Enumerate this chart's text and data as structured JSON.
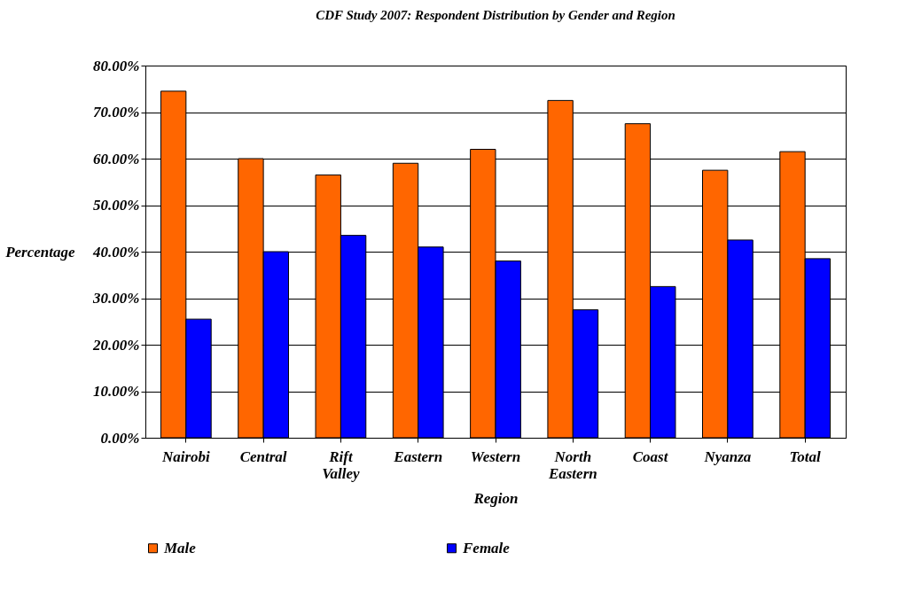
{
  "chart_data": {
    "type": "bar",
    "title": "CDF Study 2007: Respondent Distribution by Gender and Region",
    "xlabel": "Region",
    "ylabel": "Percentage",
    "categories": [
      "Nairobi",
      "Central",
      "Rift Valley",
      "Eastern",
      "Western",
      "North Eastern",
      "Coast",
      "Nyanza",
      "Total"
    ],
    "series": [
      {
        "name": "Male",
        "color": "#ff6600",
        "values": [
          74.5,
          60,
          56.5,
          59,
          62,
          72.5,
          67.5,
          57.5,
          61.5
        ]
      },
      {
        "name": "Female",
        "color": "#0000ff",
        "values": [
          25.5,
          40,
          43.5,
          41,
          38,
          27.5,
          32.5,
          42.5,
          38.5
        ]
      }
    ],
    "ylim": [
      0,
      80
    ],
    "yticks": [
      {
        "value": 0,
        "label": "0.00%"
      },
      {
        "value": 10,
        "label": "10.00%"
      },
      {
        "value": 20,
        "label": "20.00%"
      },
      {
        "value": 30,
        "label": "30.00%"
      },
      {
        "value": 40,
        "label": "40.00%"
      },
      {
        "value": 50,
        "label": "50.00%"
      },
      {
        "value": 60,
        "label": "60.00%"
      },
      {
        "value": 70,
        "label": "70.00%"
      },
      {
        "value": 80,
        "label": "80.00%"
      }
    ],
    "grid": "y",
    "legend": "bottom"
  }
}
